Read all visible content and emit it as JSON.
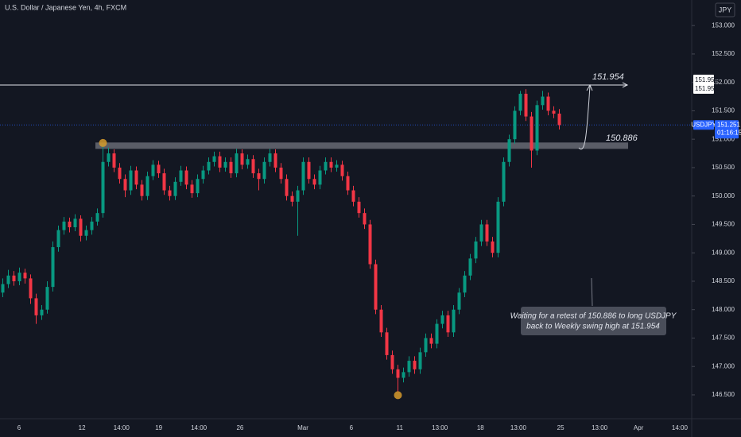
{
  "chart_data": {
    "type": "candlestick",
    "title": "U.S. Dollar / Japanese Yen, 4h, FXCM",
    "currency": "JPY",
    "symbol": "USDJPY",
    "up_color": "#089981",
    "down_color": "#f23645",
    "ylim": [
      146.08,
      153.45
    ],
    "yticks": [
      {
        "value": 146.5,
        "label": "146.500"
      },
      {
        "value": 147,
        "label": "147.000"
      },
      {
        "value": 147.5,
        "label": "147.500"
      },
      {
        "value": 148,
        "label": "148.000"
      },
      {
        "value": 148.5,
        "label": "148.500"
      },
      {
        "value": 149,
        "label": "149.000"
      },
      {
        "value": 149.5,
        "label": "149.500"
      },
      {
        "value": 150,
        "label": "150.000"
      },
      {
        "value": 150.5,
        "label": "150.500"
      },
      {
        "value": 151,
        "label": "151.000"
      },
      {
        "value": 151.5,
        "label": "151.500"
      },
      {
        "value": 152,
        "label": "152.000"
      },
      {
        "value": 152.5,
        "label": "152.500"
      },
      {
        "value": 153,
        "label": "153.000"
      }
    ],
    "xlim": [
      0,
      124
    ],
    "xticks": [
      {
        "value": 3,
        "label": "6"
      },
      {
        "value": 14.3,
        "label": "12"
      },
      {
        "value": 21.4,
        "label": "14:00"
      },
      {
        "value": 28.1,
        "label": "19"
      },
      {
        "value": 35.3,
        "label": "14:00"
      },
      {
        "value": 42.7,
        "label": "26"
      },
      {
        "value": 54,
        "label": "Mar"
      },
      {
        "value": 62.7,
        "label": "6"
      },
      {
        "value": 71.4,
        "label": "11"
      },
      {
        "value": 78.6,
        "label": "13:00"
      },
      {
        "value": 85.9,
        "label": "18"
      },
      {
        "value": 92.7,
        "label": "13:00"
      },
      {
        "value": 100.3,
        "label": "25"
      },
      {
        "value": 107.3,
        "label": "13:00"
      },
      {
        "value": 114.3,
        "label": "Apr"
      },
      {
        "value": 121.7,
        "label": "14:00"
      }
    ],
    "candles": [
      [
        148.3,
        148.55,
        148.22,
        148.45
      ],
      [
        148.45,
        148.7,
        148.38,
        148.6
      ],
      [
        148.6,
        148.68,
        148.42,
        148.5
      ],
      [
        148.5,
        148.74,
        148.43,
        148.65
      ],
      [
        148.65,
        148.72,
        148.46,
        148.55
      ],
      [
        148.55,
        148.62,
        148.1,
        148.2
      ],
      [
        148.2,
        148.28,
        147.75,
        147.9
      ],
      [
        147.9,
        148.08,
        147.82,
        148.0
      ],
      [
        148.0,
        148.5,
        147.93,
        148.4
      ],
      [
        148.4,
        149.2,
        148.32,
        149.1
      ],
      [
        149.1,
        149.48,
        149.02,
        149.4
      ],
      [
        149.4,
        149.63,
        149.32,
        149.55
      ],
      [
        149.55,
        149.62,
        149.36,
        149.45
      ],
      [
        149.45,
        149.68,
        149.38,
        149.6
      ],
      [
        149.6,
        149.66,
        149.2,
        149.3
      ],
      [
        149.3,
        149.48,
        149.22,
        149.4
      ],
      [
        149.4,
        149.63,
        149.32,
        149.55
      ],
      [
        149.55,
        149.78,
        149.48,
        149.7
      ],
      [
        149.7,
        150.92,
        149.62,
        150.6
      ],
      [
        150.6,
        150.85,
        150.52,
        150.75
      ],
      [
        150.75,
        150.82,
        150.42,
        150.5
      ],
      [
        150.5,
        150.58,
        150.22,
        150.3
      ],
      [
        150.3,
        150.38,
        149.98,
        150.1
      ],
      [
        150.1,
        150.53,
        150.02,
        150.45
      ],
      [
        150.45,
        150.52,
        150.12,
        150.2
      ],
      [
        150.2,
        150.28,
        149.92,
        150.0
      ],
      [
        150.0,
        150.43,
        149.93,
        150.35
      ],
      [
        150.35,
        150.63,
        150.28,
        150.55
      ],
      [
        150.55,
        150.62,
        150.32,
        150.4
      ],
      [
        150.4,
        150.48,
        150.02,
        150.1
      ],
      [
        150.1,
        150.18,
        149.92,
        150.0
      ],
      [
        150.0,
        150.33,
        149.93,
        150.25
      ],
      [
        150.25,
        150.53,
        150.18,
        150.45
      ],
      [
        150.45,
        150.52,
        150.12,
        150.2
      ],
      [
        150.2,
        150.28,
        149.97,
        150.05
      ],
      [
        150.05,
        150.38,
        149.98,
        150.3
      ],
      [
        150.3,
        150.53,
        150.22,
        150.45
      ],
      [
        150.45,
        150.68,
        150.38,
        150.6
      ],
      [
        150.6,
        150.78,
        150.52,
        150.7
      ],
      [
        150.7,
        150.78,
        150.42,
        150.5
      ],
      [
        150.5,
        150.68,
        150.43,
        150.6
      ],
      [
        150.6,
        150.68,
        150.32,
        150.4
      ],
      [
        150.4,
        150.83,
        150.33,
        150.75
      ],
      [
        150.75,
        150.82,
        150.47,
        150.55
      ],
      [
        150.55,
        150.73,
        150.48,
        150.65
      ],
      [
        150.65,
        150.72,
        150.32,
        150.4
      ],
      [
        150.4,
        150.48,
        150.1,
        150.3
      ],
      [
        150.3,
        150.68,
        150.22,
        150.6
      ],
      [
        150.6,
        150.83,
        150.52,
        150.75
      ],
      [
        150.75,
        150.82,
        150.42,
        150.5
      ],
      [
        150.5,
        150.58,
        150.22,
        150.3
      ],
      [
        150.3,
        150.38,
        149.92,
        150.0
      ],
      [
        150.0,
        150.08,
        149.82,
        149.9
      ],
      [
        149.9,
        150.18,
        149.3,
        150.1
      ],
      [
        150.1,
        150.68,
        150.02,
        150.6
      ],
      [
        150.6,
        150.68,
        150.22,
        150.3
      ],
      [
        150.3,
        150.38,
        150.12,
        150.2
      ],
      [
        150.2,
        150.53,
        150.12,
        150.45
      ],
      [
        150.45,
        150.68,
        150.38,
        150.6
      ],
      [
        150.6,
        150.68,
        150.42,
        150.5
      ],
      [
        150.5,
        150.63,
        150.43,
        150.55
      ],
      [
        150.55,
        150.62,
        150.27,
        150.35
      ],
      [
        150.35,
        150.43,
        150.02,
        150.1
      ],
      [
        150.1,
        150.18,
        149.82,
        149.9
      ],
      [
        149.9,
        149.98,
        149.62,
        149.7
      ],
      [
        149.7,
        149.78,
        149.42,
        149.5
      ],
      [
        149.5,
        149.58,
        148.72,
        148.8
      ],
      [
        148.8,
        148.88,
        147.92,
        148.0
      ],
      [
        148.0,
        148.08,
        147.52,
        147.6
      ],
      [
        147.6,
        147.68,
        147.12,
        147.2
      ],
      [
        147.2,
        147.28,
        146.87,
        146.95
      ],
      [
        146.95,
        147.03,
        146.55,
        146.8
      ],
      [
        146.8,
        146.98,
        146.72,
        146.9
      ],
      [
        146.9,
        147.18,
        146.82,
        147.1
      ],
      [
        147.1,
        147.18,
        146.87,
        146.95
      ],
      [
        146.95,
        147.33,
        146.87,
        147.25
      ],
      [
        147.25,
        147.58,
        147.17,
        147.5
      ],
      [
        147.5,
        147.58,
        147.32,
        147.4
      ],
      [
        147.4,
        147.83,
        147.32,
        147.75
      ],
      [
        147.75,
        147.98,
        147.67,
        147.9
      ],
      [
        147.9,
        147.98,
        147.52,
        147.6
      ],
      [
        147.6,
        148.08,
        147.52,
        148.0
      ],
      [
        148.0,
        148.38,
        147.92,
        148.3
      ],
      [
        148.3,
        148.68,
        148.22,
        148.6
      ],
      [
        148.6,
        148.98,
        148.52,
        148.9
      ],
      [
        148.9,
        149.28,
        148.82,
        149.2
      ],
      [
        149.2,
        149.58,
        149.12,
        149.5
      ],
      [
        149.5,
        149.58,
        149.12,
        149.2
      ],
      [
        149.2,
        149.28,
        148.92,
        149.0
      ],
      [
        149.0,
        149.98,
        148.92,
        149.9
      ],
      [
        149.9,
        150.68,
        149.82,
        150.6
      ],
      [
        150.6,
        151.08,
        150.52,
        151.0
      ],
      [
        151.0,
        151.58,
        150.92,
        151.5
      ],
      [
        151.5,
        151.85,
        151.42,
        151.8
      ],
      [
        151.8,
        151.88,
        151.32,
        151.4
      ],
      [
        151.4,
        151.48,
        150.5,
        150.8
      ],
      [
        150.8,
        151.68,
        150.72,
        151.6
      ],
      [
        151.6,
        151.85,
        151.52,
        151.75
      ],
      [
        151.75,
        151.82,
        151.42,
        151.5
      ],
      [
        151.5,
        151.58,
        151.37,
        151.45
      ],
      [
        151.45,
        151.53,
        151.17,
        151.25
      ]
    ],
    "levels": [
      151.954,
      150.886
    ],
    "last_price": 151.251,
    "countdown": "01:16:15",
    "note": "Waiting for a retest of 150.886 to long USDJPY back to Weekly swing high at 151.954"
  }
}
